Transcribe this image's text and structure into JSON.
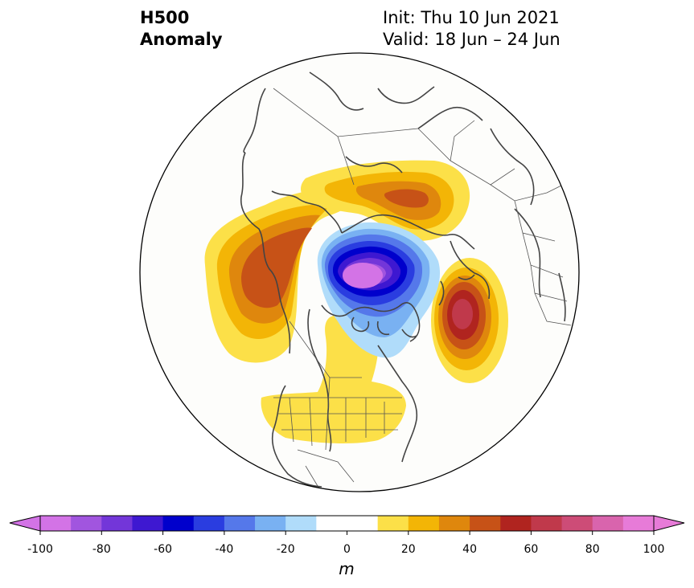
{
  "header": {
    "variable": "H500",
    "field": "Anomaly",
    "init": "Init: Thu 10 Jun 2021",
    "valid": "Valid: 18 Jun – 24 Jun"
  },
  "map": {
    "projection": "north-polar-stereographic",
    "features": [
      "coastlines",
      "country-borders",
      "us-state-borders"
    ],
    "anomaly_centers": [
      {
        "name": "negative-center-arctic",
        "sign": "negative",
        "approx_peak_m": -90
      },
      {
        "name": "positive-ridge-siberia-alaska",
        "sign": "positive",
        "approx_peak_m": 50
      },
      {
        "name": "positive-ridge-eurasia-north",
        "sign": "positive",
        "approx_peak_m": 50
      },
      {
        "name": "positive-center-north-atlantic",
        "sign": "positive",
        "approx_peak_m": 70
      },
      {
        "name": "positive-ridge-north-america",
        "sign": "positive",
        "approx_peak_m": 20
      }
    ]
  },
  "colorbar": {
    "unit": "m",
    "min": -100,
    "max": 100,
    "step": 10,
    "extend": "both",
    "tick_labels": [
      "-100",
      "-80",
      "-60",
      "-40",
      "-20",
      "0",
      "20",
      "40",
      "60",
      "80",
      "100"
    ],
    "colors": [
      "#d373e6",
      "#a155df",
      "#7336d9",
      "#3e18d1",
      "#0000cc",
      "#2a3de0",
      "#5578ea",
      "#79b1f2",
      "#b0dcfa",
      "#ffffff",
      "#ffffff",
      "#fce048",
      "#f3b506",
      "#df870d",
      "#c75217",
      "#b0241f",
      "#c0394b",
      "#cd4c77",
      "#d964ad",
      "#e77bd8"
    ],
    "under_color": "#d373e6",
    "over_color": "#e77bd8"
  }
}
